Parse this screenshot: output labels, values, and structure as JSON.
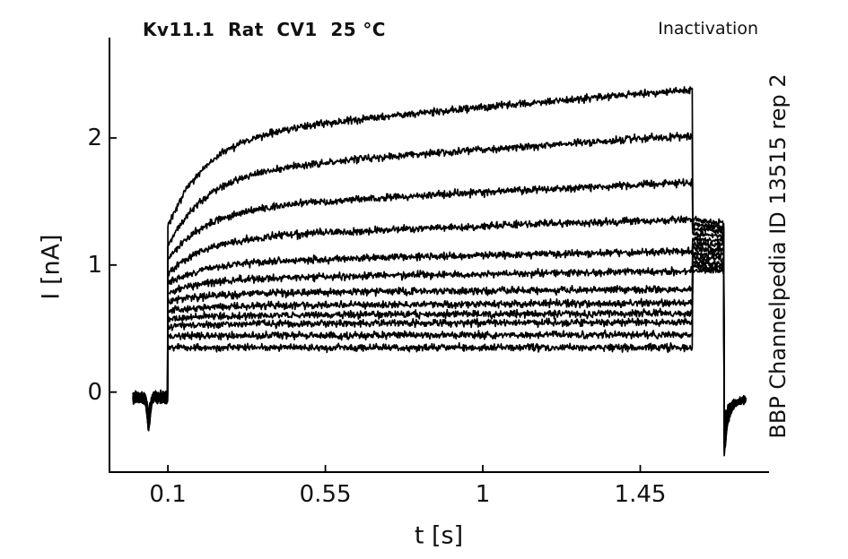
{
  "figure": {
    "title": "Kv11.1  Rat  CV1  25 °C",
    "top_right_annotation": "Inactivation",
    "right_side_annotation": "BBP Channelpedia ID 13515 rep 2",
    "background_color": "#ffffff",
    "axis_color": "#000000",
    "trace_color": "#000000"
  },
  "chart_data": {
    "type": "line",
    "title": "Kv11.1  Rat  CV1  25 °C",
    "subtitle": "Inactivation",
    "side_note": "BBP Channelpedia ID 13515 rep 2",
    "xlabel": "t [s]",
    "ylabel": "I [nA]",
    "xlim": [
      -0.067,
      1.818
    ],
    "ylim": [
      -0.63,
      2.79
    ],
    "xticks": [
      {
        "value": 0.1,
        "label": "0.1"
      },
      {
        "value": 0.55,
        "label": "0.55"
      },
      {
        "value": 1.0,
        "label": "1"
      },
      {
        "value": 1.45,
        "label": "1.45"
      }
    ],
    "yticks": [
      {
        "value": 0,
        "label": "0"
      },
      {
        "value": 1,
        "label": "1"
      },
      {
        "value": 2,
        "label": "2"
      }
    ],
    "grid": false,
    "legend": "none",
    "line_color": "#000000",
    "n_traces": 12,
    "protocol": {
      "description": "voltage-clamp inactivation protocol: baseline at 0 nA, pre-pulse blip near 0.045 s, depolarizing step 0.1-1.6 s to graded current levels, fixed tail pulse 1.6-1.69 s (tail bundle 0.95-1.37 nA), capacitive negative spike to -0.5 nA at 1.69 s, record ends ~1.75 s",
      "baseline_start_s": 0.0,
      "step_on_s": 0.1,
      "step_off_s": 1.6,
      "tail_end_s": 1.69,
      "record_end_s": 1.752,
      "baseline_nA": -0.03,
      "blip_time_s": 0.045,
      "end_spike_min_nA": -0.5
    },
    "series": [
      {
        "name": "trace-01",
        "step_nA": 1.3,
        "end_nA": 2.38,
        "tail_start_nA": 1.37,
        "tail_end_nA": 1.33
      },
      {
        "name": "trace-02",
        "step_nA": 1.15,
        "end_nA": 2.02,
        "tail_start_nA": 1.33,
        "tail_end_nA": 1.3
      },
      {
        "name": "trace-03",
        "step_nA": 1.04,
        "end_nA": 1.65,
        "tail_start_nA": 1.29,
        "tail_end_nA": 1.27
      },
      {
        "name": "trace-04",
        "step_nA": 0.93,
        "end_nA": 1.36,
        "tail_start_nA": 1.25,
        "tail_end_nA": 1.23
      },
      {
        "name": "trace-05",
        "step_nA": 0.85,
        "end_nA": 1.11,
        "tail_start_nA": 1.21,
        "tail_end_nA": 1.19
      },
      {
        "name": "trace-06",
        "step_nA": 0.78,
        "end_nA": 0.95,
        "tail_start_nA": 1.17,
        "tail_end_nA": 1.16
      },
      {
        "name": "trace-07",
        "step_nA": 0.71,
        "end_nA": 0.81,
        "tail_start_nA": 1.13,
        "tail_end_nA": 1.12
      },
      {
        "name": "trace-08",
        "step_nA": 0.64,
        "end_nA": 0.7,
        "tail_start_nA": 1.09,
        "tail_end_nA": 1.08
      },
      {
        "name": "trace-09",
        "step_nA": 0.575,
        "end_nA": 0.62,
        "tail_start_nA": 1.06,
        "tail_end_nA": 1.05
      },
      {
        "name": "trace-10",
        "step_nA": 0.515,
        "end_nA": 0.55,
        "tail_start_nA": 1.02,
        "tail_end_nA": 1.01
      },
      {
        "name": "trace-11",
        "step_nA": 0.44,
        "end_nA": 0.45,
        "tail_start_nA": 0.99,
        "tail_end_nA": 0.98
      },
      {
        "name": "trace-12",
        "step_nA": 0.35,
        "end_nA": 0.35,
        "tail_start_nA": 0.95,
        "tail_end_nA": 0.96
      }
    ]
  }
}
